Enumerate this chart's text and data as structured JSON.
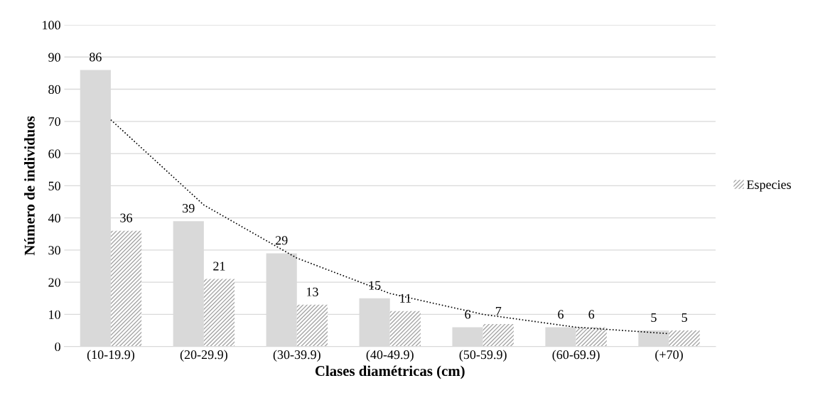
{
  "chart_data": {
    "type": "bar",
    "xlabel": "Clases diamétricas (cm)",
    "ylabel": "Número de individuos",
    "categories": [
      "(10-19.9)",
      "(20-29.9)",
      "(30-39.9)",
      "(40-49.9)",
      "(50-59.9)",
      "(60-69.9)",
      "(+70)"
    ],
    "series": [
      {
        "color": "#d9d9d9",
        "values": [
          86,
          39,
          29,
          15,
          6,
          6,
          5
        ],
        "value_labels": [
          "86",
          "39",
          "29",
          "15",
          "6",
          "6",
          "5"
        ]
      },
      {
        "name": "Especies",
        "color": "#a6a6a6",
        "values": [
          36,
          21,
          13,
          11,
          7,
          6,
          5
        ],
        "value_labels": [
          "36",
          "21",
          "13",
          "11",
          "7",
          "6",
          "5"
        ]
      },
      {
        "type": "line",
        "color": "#000000",
        "line_style": "dotted",
        "values": [
          70.5,
          44,
          27.5,
          16.5,
          10,
          6,
          4
        ]
      }
    ],
    "ylim": [
      0,
      100
    ],
    "yticks": [
      0,
      10,
      20,
      30,
      40,
      50,
      60,
      70,
      80,
      90,
      100
    ],
    "grid": "y",
    "legend": "right"
  }
}
